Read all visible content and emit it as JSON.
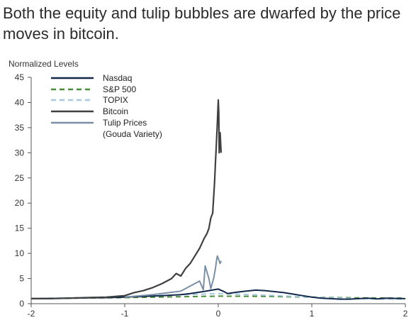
{
  "headline": "Both the equity and tulip bubbles are dwarfed by the price moves in bitcoin.",
  "chart_data": {
    "type": "line",
    "ylabel": "Normalized Levels",
    "xlim": [
      -2,
      2
    ],
    "ylim": [
      0,
      45
    ],
    "xticks": [
      "-2",
      "-1",
      "0",
      "1",
      "2"
    ],
    "yticks": [
      "0",
      "5",
      "10",
      "15",
      "20",
      "25",
      "30",
      "35",
      "40",
      "45"
    ],
    "legend_position": "top-left",
    "series": [
      {
        "name": "Nasdaq",
        "color": "#13294b",
        "style": "solid",
        "x": [
          -2.0,
          -1.8,
          -1.6,
          -1.4,
          -1.2,
          -1.0,
          -0.8,
          -0.6,
          -0.4,
          -0.3,
          -0.2,
          -0.1,
          0.0,
          0.05,
          0.1,
          0.2,
          0.3,
          0.4,
          0.5,
          0.6,
          0.7,
          0.8,
          0.9,
          1.0,
          1.1,
          1.2,
          1.3,
          1.4,
          1.5,
          1.6,
          1.7,
          1.8,
          1.9,
          2.0
        ],
        "y": [
          1.0,
          1.05,
          1.1,
          1.15,
          1.2,
          1.3,
          1.45,
          1.6,
          1.8,
          2.0,
          2.3,
          2.6,
          2.9,
          2.5,
          2.0,
          2.3,
          2.5,
          2.7,
          2.6,
          2.4,
          2.2,
          1.9,
          1.6,
          1.3,
          1.1,
          1.0,
          0.9,
          0.9,
          1.0,
          1.1,
          0.95,
          1.1,
          1.05,
          1.0
        ]
      },
      {
        "name": "S&P 500",
        "color": "#4e8a3e",
        "style": "dashed",
        "x": [
          -2.0,
          -1.5,
          -1.0,
          -0.5,
          0.0,
          0.5,
          1.0,
          1.5,
          2.0
        ],
        "y": [
          1.0,
          1.1,
          1.2,
          1.35,
          1.5,
          1.45,
          1.3,
          1.15,
          1.1
        ]
      },
      {
        "name": "TOPIX",
        "color": "#a9c7de",
        "style": "dashed",
        "x": [
          -2.0,
          -1.5,
          -1.0,
          -0.5,
          0.0,
          0.5,
          1.0,
          1.5,
          2.0
        ],
        "y": [
          1.0,
          1.2,
          1.4,
          1.7,
          2.0,
          1.7,
          1.3,
          1.0,
          0.9
        ]
      },
      {
        "name": "Bitcoin",
        "color": "#404040",
        "style": "solid",
        "x": [
          -2.0,
          -1.8,
          -1.6,
          -1.4,
          -1.2,
          -1.0,
          -0.9,
          -0.8,
          -0.7,
          -0.6,
          -0.5,
          -0.45,
          -0.4,
          -0.35,
          -0.3,
          -0.25,
          -0.2,
          -0.15,
          -0.12,
          -0.1,
          -0.08,
          -0.06,
          -0.05,
          -0.04,
          -0.03,
          -0.02,
          -0.01,
          0.0,
          0.005,
          0.01,
          0.02,
          0.03
        ],
        "y": [
          1.0,
          1.0,
          1.1,
          1.2,
          1.3,
          1.6,
          2.2,
          2.6,
          3.2,
          4.0,
          5.0,
          6.0,
          5.5,
          7.0,
          8.0,
          9.5,
          11.0,
          13.0,
          14.0,
          15.0,
          17.0,
          18.0,
          21.0,
          24.0,
          28.0,
          32.0,
          36.0,
          40.5,
          38.0,
          30.0,
          34.0,
          30.0
        ]
      },
      {
        "name": "Tulip Prices\n(Gouda Variety)",
        "color": "#7a8fa6",
        "style": "solid",
        "x": [
          -1.0,
          -0.7,
          -0.4,
          -0.2,
          -0.16,
          -0.14,
          -0.1,
          -0.08,
          -0.05,
          -0.03,
          -0.02,
          -0.01,
          0.0,
          0.01,
          0.02,
          0.03
        ],
        "y": [
          1.3,
          1.8,
          2.5,
          4.5,
          2.8,
          7.5,
          5.0,
          3.0,
          5.0,
          7.0,
          8.5,
          9.5,
          9.0,
          8.5,
          8.0,
          8.5
        ]
      }
    ]
  }
}
